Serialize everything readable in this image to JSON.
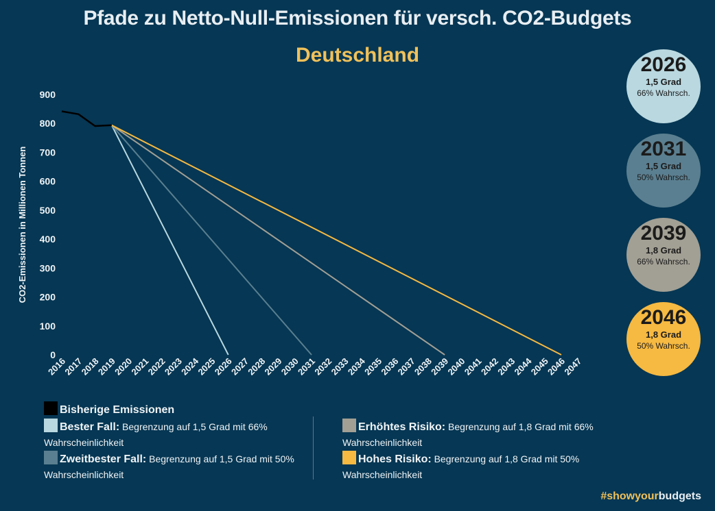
{
  "header": {
    "title": "Pfade zu Netto-Null-Emissionen für versch. CO2-Budgets",
    "subtitle": "Deutschland"
  },
  "chart_data": {
    "type": "line",
    "title": "Pfade zu Netto-Null-Emissionen für versch. CO2-Budgets",
    "subtitle": "Deutschland",
    "xlabel": "",
    "ylabel": "CO2-Emissionen in Millionen Tonnen",
    "xlim": [
      2016,
      2047
    ],
    "ylim": [
      0,
      900
    ],
    "yticks": [
      0,
      100,
      200,
      300,
      400,
      500,
      600,
      700,
      800,
      900
    ],
    "xticks": [
      "2016",
      "2017",
      "2018",
      "2019",
      "2020",
      "2021",
      "2022",
      "2023",
      "2024",
      "2025",
      "2026",
      "2027",
      "2028",
      "2029",
      "2030",
      "2031",
      "2032",
      "2033",
      "2034",
      "2035",
      "2036",
      "2037",
      "2038",
      "2039",
      "2040",
      "2041",
      "2042",
      "2043",
      "2044",
      "2045",
      "2046",
      "2047"
    ],
    "grid": false,
    "series": [
      {
        "name": "Bisherige Emissionen",
        "color": "#000000",
        "x": [
          2016,
          2017,
          2018,
          2019
        ],
        "y": [
          842,
          832,
          791,
          794
        ]
      },
      {
        "name": "Bester Fall",
        "color": "#b9d8e0",
        "x": [
          2019,
          2026
        ],
        "y": [
          794,
          0
        ]
      },
      {
        "name": "Zweitbester Fall",
        "color": "#5a7f90",
        "x": [
          2019,
          2031
        ],
        "y": [
          794,
          0
        ]
      },
      {
        "name": "Erhöhtes Risiko",
        "color": "#a29f94",
        "x": [
          2019,
          2039
        ],
        "y": [
          794,
          0
        ]
      },
      {
        "name": "Hohes Risiko",
        "color": "#f6b941",
        "x": [
          2019,
          2046
        ],
        "y": [
          794,
          0
        ]
      }
    ]
  },
  "circles": [
    {
      "year": "2026",
      "degree": "1,5 Grad",
      "prob": "66% Wahrsch.",
      "color": "#b9d8e0"
    },
    {
      "year": "2031",
      "degree": "1,5 Grad",
      "prob": "50% Wahrsch.",
      "color": "#5a7f90"
    },
    {
      "year": "2039",
      "degree": "1,8 Grad",
      "prob": "66% Wahrsch.",
      "color": "#a29f94"
    },
    {
      "year": "2046",
      "degree": "1,8 Grad",
      "prob": "50% Wahrsch.",
      "color": "#f6b941"
    }
  ],
  "legend": {
    "historic": {
      "label": "Bisherige Emissionen",
      "color": "#000000"
    },
    "items": [
      {
        "title": "Bester Fall:",
        "text": "Begrenzung auf 1,5 Grad mit 66%",
        "text2": "Wahrscheinlichkeit",
        "color": "#b9d8e0"
      },
      {
        "title": "Zweitbester Fall:",
        "text": "Begrenzung auf 1,5 Grad mit 50%",
        "text2": "Wahrscheinlichkeit",
        "color": "#5a7f90"
      },
      {
        "title": "Erhöhtes Risiko:",
        "text": "Begrenzung auf 1,8 Grad mit 66%",
        "text2": "Wahrscheinlichkeit",
        "color": "#a29f94"
      },
      {
        "title": "Hohes Risiko:",
        "text": "Begrenzung auf 1,8 Grad mit 50%",
        "text2": "Wahrscheinlichkeit",
        "color": "#f6b941"
      }
    ]
  },
  "footer": {
    "hashtag_part1": "#showyour",
    "hashtag_part2": "budgets",
    "color1": "#f0c15a",
    "color2": "#e8eef2"
  }
}
